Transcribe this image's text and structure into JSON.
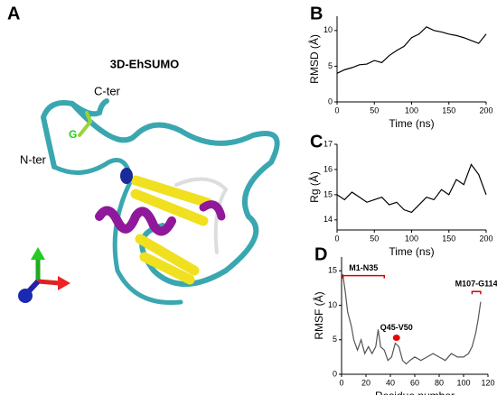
{
  "panel_a": {
    "label": "A",
    "title": "3D-EhSUMO",
    "c_ter": "C-ter",
    "n_ter": "N-ter",
    "g1": "G",
    "g2": "G"
  },
  "chart_data": [
    {
      "type": "line",
      "label": "B",
      "ylabel": "RMSD (Å)",
      "xlabel": "Time (ns)",
      "color": "#000000",
      "x": [
        0,
        10,
        20,
        30,
        40,
        50,
        60,
        70,
        80,
        90,
        100,
        110,
        120,
        130,
        140,
        150,
        160,
        170,
        180,
        190,
        200
      ],
      "values": [
        4,
        4.5,
        4.8,
        5.2,
        5.3,
        5.8,
        5.5,
        6.5,
        7.2,
        7.8,
        9,
        9.5,
        10.5,
        10,
        9.8,
        9.5,
        9.3,
        9,
        8.6,
        8.2,
        9.5
      ],
      "xlim": [
        0,
        200
      ],
      "ylim": [
        0,
        12
      ],
      "xticks": [
        0,
        50,
        100,
        150,
        200
      ],
      "yticks": [
        0,
        5,
        10
      ]
    },
    {
      "type": "line",
      "label": "C",
      "ylabel": "Rg (Å)",
      "xlabel": "Time (ns)",
      "color": "#000000",
      "x": [
        0,
        10,
        20,
        30,
        40,
        50,
        60,
        70,
        80,
        90,
        100,
        110,
        120,
        130,
        140,
        150,
        160,
        170,
        180,
        190,
        200
      ],
      "values": [
        15,
        14.8,
        15.1,
        14.9,
        14.7,
        14.8,
        14.9,
        14.6,
        14.7,
        14.4,
        14.3,
        14.6,
        14.9,
        14.8,
        15.2,
        15.0,
        15.6,
        15.4,
        16.2,
        15.8,
        15.0
      ],
      "xlim": [
        0,
        200
      ],
      "ylim": [
        13.6,
        17
      ],
      "xticks": [
        0,
        50,
        100,
        150,
        200
      ],
      "yticks": [
        14,
        15,
        16,
        17
      ]
    },
    {
      "type": "line",
      "label": "D",
      "ylabel": "RMSF (Å)",
      "xlabel": "Residue number",
      "color": "#555555",
      "x": [
        1,
        3,
        5,
        8,
        10,
        13,
        16,
        19,
        22,
        25,
        28,
        30,
        32,
        35,
        38,
        41,
        44,
        47,
        50,
        53,
        56,
        60,
        65,
        70,
        75,
        80,
        85,
        90,
        95,
        100,
        104,
        107,
        110,
        112,
        114
      ],
      "values": [
        14.5,
        12,
        9,
        7,
        5,
        3.5,
        5,
        3,
        4,
        3,
        4,
        6.5,
        4,
        3.5,
        2,
        2.5,
        4.5,
        4,
        2,
        1.5,
        2,
        2.5,
        2,
        2.5,
        3,
        2.5,
        2,
        3,
        2.5,
        2.5,
        3,
        4,
        6,
        8,
        10.5
      ],
      "xlim": [
        0,
        120
      ],
      "ylim": [
        0,
        17
      ],
      "xticks": [
        0,
        20,
        40,
        60,
        80,
        100,
        120
      ],
      "yticks": [
        0,
        5,
        10,
        15
      ],
      "annotations": [
        "M1-N35",
        "Q45-V50",
        "M107-G114"
      ]
    }
  ]
}
